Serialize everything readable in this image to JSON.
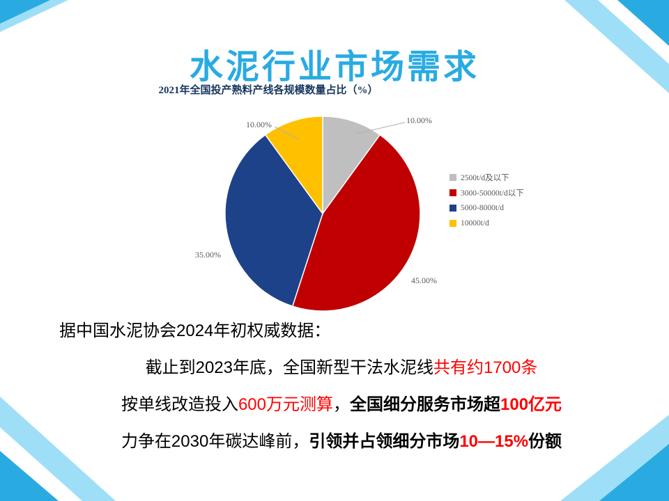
{
  "theme": {
    "accent": "#29ABE2",
    "accent_light": "#9EDFF7",
    "navy": "#17375E",
    "red_text": "#FF0000"
  },
  "slide": {
    "title": "水泥行业市场需求"
  },
  "chart_data": {
    "type": "pie",
    "title": "2021年全国投产熟料产线各规模数量占比（%）",
    "legend_position": "right",
    "start_angle_deg": 0,
    "direction": "clockwise",
    "slices": [
      {
        "name": "2500t/d及以下",
        "value": 10,
        "label": "10.00%",
        "color": "#BFBFBF"
      },
      {
        "name": "3000-50000t/d以下",
        "value": 45,
        "label": "45.00%",
        "color": "#C00000"
      },
      {
        "name": "5000-8000t/d",
        "value": 35,
        "label": "35.00%",
        "color": "#1E4289"
      },
      {
        "name": "10000t/d",
        "value": 10,
        "label": "10.00%",
        "color": "#FFC000"
      }
    ]
  },
  "body": {
    "intro": "据中国水泥协会2024年初权威数据：",
    "line2": {
      "part1": "截止到2023年底，全国新型干法水泥线",
      "part2": "共有约1700条"
    },
    "line3": {
      "part1": "按单线改造投入",
      "part2": "600万元测算",
      "part3": "，",
      "part4": "全国细分服务市场超",
      "part5": "100亿元"
    },
    "line4": {
      "part1": "力争在2030年碳达峰前，",
      "part2": "引领并占领细分市场",
      "part3": "10—15%",
      "part4": "份额"
    }
  }
}
